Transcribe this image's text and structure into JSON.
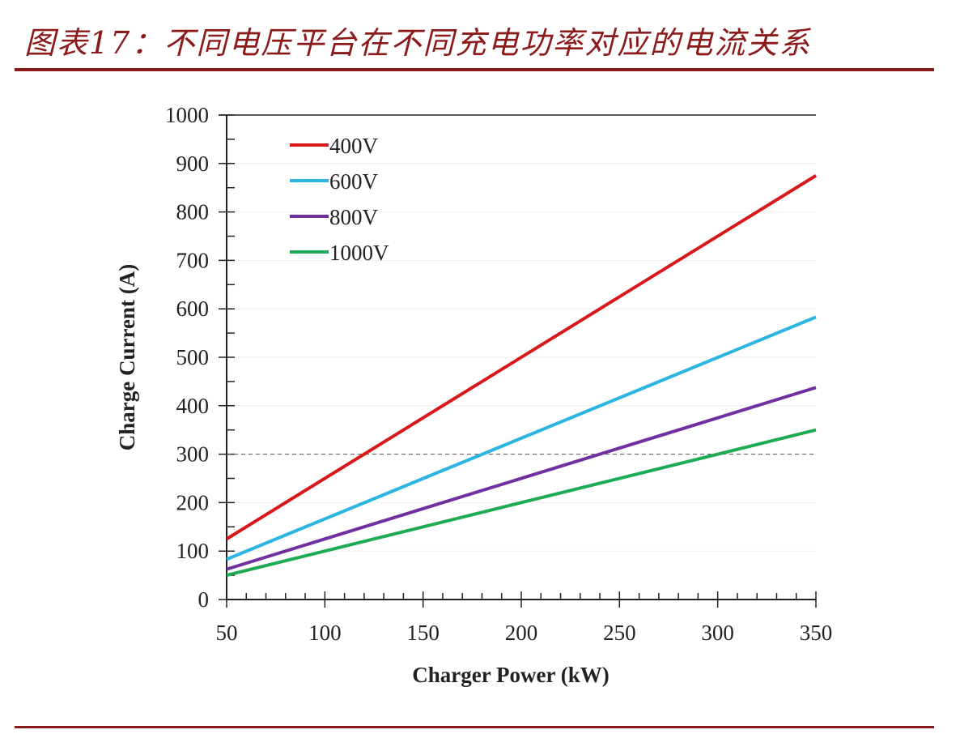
{
  "title": "图表17：不同电压平台在不同充电功率对应的电流关系",
  "chart_data": {
    "type": "line",
    "xlabel": "Charger Power (kW)",
    "ylabel": "Charge Current  (A)",
    "xlim": [
      50,
      350
    ],
    "ylim": [
      0,
      1000
    ],
    "xticks": [
      50,
      100,
      150,
      200,
      250,
      300,
      350
    ],
    "yticks": [
      0,
      100,
      200,
      300,
      400,
      500,
      600,
      700,
      800,
      900,
      1000
    ],
    "grid": true,
    "legend_position": "top-left",
    "reference_line": {
      "y": 300,
      "style": "dashed"
    },
    "x": [
      50,
      350
    ],
    "series": [
      {
        "name": "400V",
        "color": "#d7191c",
        "values": [
          125,
          875
        ]
      },
      {
        "name": "600V",
        "color": "#2cb5e0",
        "values": [
          83,
          583
        ]
      },
      {
        "name": "800V",
        "color": "#7030a0",
        "values": [
          62.5,
          437.5
        ]
      },
      {
        "name": "1000V",
        "color": "#1faa55",
        "values": [
          50,
          350
        ]
      }
    ]
  }
}
